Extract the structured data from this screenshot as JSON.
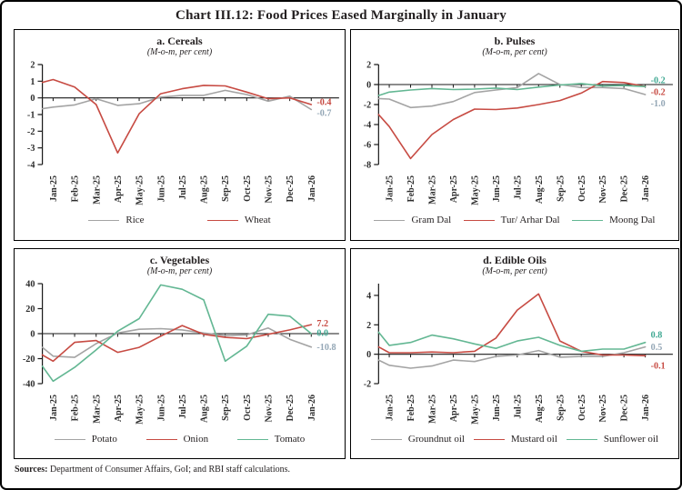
{
  "page": {
    "title": "Chart III.12: Food Prices Eased Marginally in January"
  },
  "footer": {
    "label": "Sources:",
    "text": " Department of Consumer Affairs, GoI; and RBI staff calculations."
  },
  "colors": {
    "gray": "#a4a4a4",
    "red": "#c74b43",
    "green": "#63b793",
    "slate": "#94a7b6",
    "teal": "#3fa892",
    "axis": "#1a1a1a"
  },
  "chart_data": [
    {
      "type": "line",
      "title": "a. Cereals",
      "subtitle": "(M-o-m, per cent)",
      "categories": [
        "Jan-25",
        "Feb-25",
        "Mar-25",
        "Apr-25",
        "May-25",
        "Jun-25",
        "Jul-25",
        "Aug-25",
        "Sep-25",
        "Oct-25",
        "Nov-25",
        "Dec-25",
        "Jan-26"
      ],
      "ylim": [
        -4,
        2
      ],
      "axis_top": 2,
      "yticks": [
        2,
        1,
        0,
        -1,
        -2,
        -3,
        -4
      ],
      "series": [
        {
          "name": "Rice",
          "color": "gray",
          "axis_start": -0.65,
          "values": [
            -0.55,
            -0.42,
            -0.05,
            -0.45,
            -0.35,
            0.05,
            0.15,
            0.15,
            0.45,
            0.2,
            -0.2,
            0.1,
            -0.7
          ]
        },
        {
          "name": "Wheat",
          "color": "red",
          "axis_start": 0.93,
          "values": [
            1.1,
            0.65,
            -0.4,
            -3.3,
            -0.95,
            0.25,
            0.55,
            0.75,
            0.72,
            0.35,
            -0.05,
            0.0,
            -0.4
          ]
        }
      ],
      "end_labels": [
        {
          "text": "-0.4",
          "color": "red",
          "at": -0.25
        },
        {
          "text": "-0.7",
          "color": "slate",
          "at": -0.9
        }
      ]
    },
    {
      "type": "line",
      "title": "b. Pulses",
      "subtitle": "(M-o-m, per cent)",
      "categories": [
        "Jan-25",
        "Feb-25",
        "Mar-25",
        "Apr-25",
        "May-25",
        "Jun-25",
        "Jul-25",
        "Aug-25",
        "Sep-25",
        "Oct-25",
        "Nov-25",
        "Dec-25",
        "Jan-26"
      ],
      "ylim": [
        -8,
        2
      ],
      "axis_top": 2,
      "yticks": [
        2,
        0,
        -2,
        -4,
        -6,
        -8
      ],
      "series": [
        {
          "name": "Gram Dal",
          "color": "gray",
          "axis_start": -1.4,
          "values": [
            -1.45,
            -2.3,
            -2.15,
            -1.7,
            -0.8,
            -0.55,
            -0.3,
            1.1,
            0.0,
            -0.3,
            -0.3,
            -0.4,
            -1.0
          ]
        },
        {
          "name": "Tur/ Arhar Dal",
          "color": "red",
          "axis_start": -3.0,
          "values": [
            -4.2,
            -7.4,
            -5.0,
            -3.5,
            -2.45,
            -2.5,
            -2.35,
            -2.0,
            -1.6,
            -0.85,
            0.3,
            0.2,
            -0.2
          ]
        },
        {
          "name": "Moong Dal",
          "color": "green",
          "axis_start": -1.1,
          "values": [
            -0.75,
            -0.55,
            -0.4,
            -0.5,
            -0.45,
            -0.35,
            -0.5,
            -0.25,
            -0.05,
            0.1,
            -0.15,
            -0.1,
            -0.2
          ]
        }
      ],
      "end_labels": [
        {
          "text": "-0.2",
          "color": "teal",
          "at": 0.45
        },
        {
          "text": "-0.2",
          "color": "red",
          "at": -0.75
        },
        {
          "text": "-1.0",
          "color": "slate",
          "at": -1.85
        }
      ]
    },
    {
      "type": "line",
      "title": "c. Vegetables",
      "subtitle": "(M-o-m, per cent)",
      "categories": [
        "Jan-25",
        "Feb-25",
        "Mar-25",
        "Apr-25",
        "May-25",
        "Jun-25",
        "Jul-25",
        "Aug-25",
        "Sep-25",
        "Oct-25",
        "Nov-25",
        "Dec-25",
        "Jan-26"
      ],
      "ylim": [
        -40,
        40
      ],
      "axis_top": 40,
      "yticks": [
        40,
        20,
        0,
        -20,
        -40
      ],
      "series": [
        {
          "name": "Potato",
          "color": "gray",
          "axis_start": -11,
          "values": [
            -18,
            -19,
            -8,
            0.5,
            3.5,
            4,
            3,
            0.5,
            -1.5,
            -1,
            4.5,
            -4.5,
            -10.8
          ]
        },
        {
          "name": "Onion",
          "color": "red",
          "axis_start": -17,
          "values": [
            -22,
            -7,
            -5.5,
            -15,
            -11,
            -2,
            6.5,
            -0.5,
            -3,
            -4,
            -0.5,
            3,
            7.2
          ]
        },
        {
          "name": "Tomato",
          "color": "green",
          "axis_start": -26,
          "values": [
            -38,
            -27,
            -13,
            2,
            12,
            39,
            35.5,
            27,
            -22,
            -10,
            15.5,
            14,
            0.0
          ]
        }
      ],
      "end_labels": [
        {
          "text": "7.2",
          "color": "red",
          "at": 8.5
        },
        {
          "text": "0.0",
          "color": "teal",
          "at": 0.8
        },
        {
          "text": "-10.8",
          "color": "slate",
          "at": -10.5
        }
      ]
    },
    {
      "type": "line",
      "title": "d. Edible Oils",
      "subtitle": "(M-o-m, per cent)",
      "categories": [
        "Jan-25",
        "Feb-25",
        "Mar-25",
        "Apr-25",
        "May-25",
        "Jun-25",
        "Jul-25",
        "Aug-25",
        "Sep-25",
        "Oct-25",
        "Nov-25",
        "Dec-25",
        "Jan-26"
      ],
      "ylim": [
        -2,
        4
      ],
      "axis_top": 4.8,
      "yticks": [
        4,
        2,
        0,
        -2
      ],
      "series": [
        {
          "name": "Groundnut oil",
          "color": "gray",
          "axis_start": -0.4,
          "values": [
            -0.75,
            -0.95,
            -0.8,
            -0.4,
            -0.5,
            -0.15,
            -0.05,
            0.25,
            -0.2,
            -0.15,
            -0.15,
            0.1,
            0.5
          ]
        },
        {
          "name": "Mustard oil",
          "color": "red",
          "axis_start": 0.5,
          "values": [
            0.1,
            0.1,
            0.15,
            0.1,
            0.2,
            1.1,
            3.0,
            4.1,
            0.9,
            0.2,
            -0.05,
            -0.05,
            -0.1
          ]
        },
        {
          "name": "Sunflower oil",
          "color": "green",
          "axis_start": 1.5,
          "values": [
            0.6,
            0.8,
            1.3,
            1.05,
            0.7,
            0.4,
            0.9,
            1.15,
            0.6,
            0.2,
            0.35,
            0.35,
            0.8
          ]
        }
      ],
      "end_labels": [
        {
          "text": "0.8",
          "color": "teal",
          "at": 1.35
        },
        {
          "text": "0.5",
          "color": "slate",
          "at": 0.5
        },
        {
          "text": "-0.1",
          "color": "red",
          "at": -0.75
        }
      ]
    }
  ]
}
